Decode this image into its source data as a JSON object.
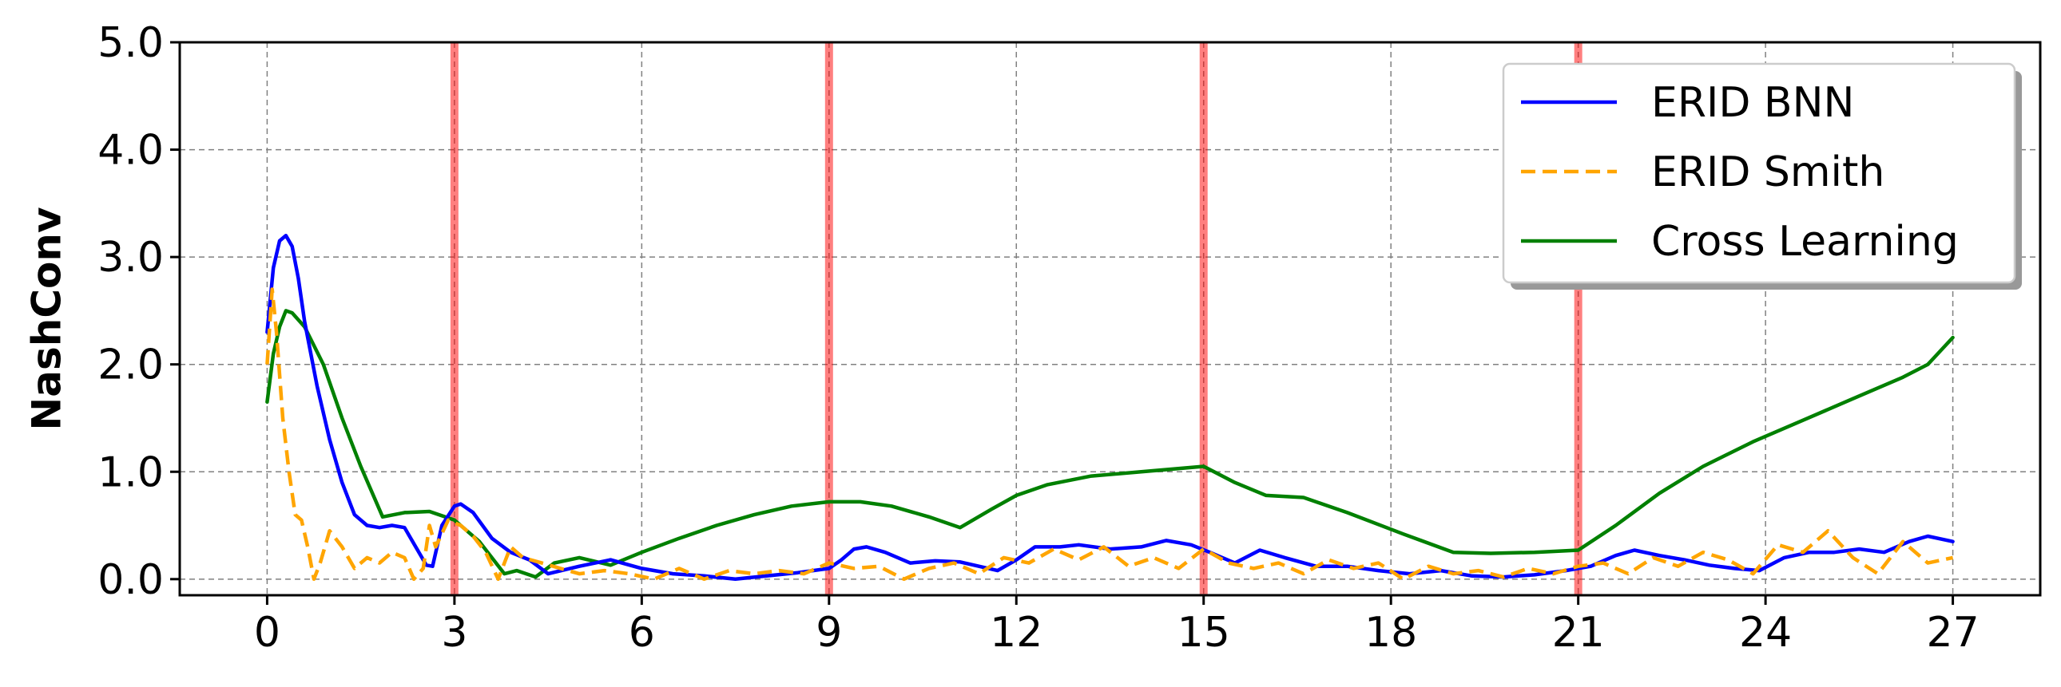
{
  "chart_data": {
    "type": "line",
    "title": "",
    "xlabel": "",
    "ylabel": "NashConv",
    "xlim": [
      -1.4,
      28.4
    ],
    "ylim": [
      -0.15,
      5.0
    ],
    "x_ticks": [
      0,
      3,
      6,
      9,
      12,
      15,
      18,
      21,
      24,
      27
    ],
    "x_tick_labels": [
      "0",
      "3",
      "6",
      "9",
      "12",
      "15",
      "18",
      "21",
      "24",
      "27"
    ],
    "y_ticks": [
      0,
      1,
      2,
      3,
      4,
      5
    ],
    "y_tick_labels": [
      "0.0",
      "1.0",
      "2.0",
      "3.0",
      "4.0",
      "5.0"
    ],
    "grid": true,
    "legend_position": "top-right",
    "vertical_markers": [
      3,
      9,
      15,
      21
    ],
    "marker_color": "#ff0000",
    "series": [
      {
        "name": "ERID BNN",
        "color": "#0000ff",
        "style": "solid",
        "points": [
          [
            0,
            2.3
          ],
          [
            0.1,
            2.9
          ],
          [
            0.2,
            3.15
          ],
          [
            0.3,
            3.2
          ],
          [
            0.4,
            3.1
          ],
          [
            0.5,
            2.8
          ],
          [
            0.6,
            2.4
          ],
          [
            0.8,
            1.8
          ],
          [
            1.0,
            1.3
          ],
          [
            1.2,
            0.9
          ],
          [
            1.4,
            0.6
          ],
          [
            1.6,
            0.5
          ],
          [
            1.8,
            0.48
          ],
          [
            2.0,
            0.5
          ],
          [
            2.2,
            0.48
          ],
          [
            2.4,
            0.28
          ],
          [
            2.55,
            0.13
          ],
          [
            2.65,
            0.12
          ],
          [
            2.8,
            0.5
          ],
          [
            3.0,
            0.68
          ],
          [
            3.1,
            0.7
          ],
          [
            3.3,
            0.62
          ],
          [
            3.6,
            0.38
          ],
          [
            3.9,
            0.25
          ],
          [
            4.2,
            0.18
          ],
          [
            4.5,
            0.05
          ],
          [
            5.0,
            0.12
          ],
          [
            5.5,
            0.18
          ],
          [
            6.0,
            0.1
          ],
          [
            6.5,
            0.05
          ],
          [
            7.0,
            0.03
          ],
          [
            7.5,
            0.0
          ],
          [
            8.0,
            0.03
          ],
          [
            8.5,
            0.06
          ],
          [
            9.0,
            0.1
          ],
          [
            9.2,
            0.18
          ],
          [
            9.4,
            0.28
          ],
          [
            9.6,
            0.3
          ],
          [
            9.9,
            0.25
          ],
          [
            10.3,
            0.15
          ],
          [
            10.7,
            0.17
          ],
          [
            11.1,
            0.16
          ],
          [
            11.4,
            0.12
          ],
          [
            11.7,
            0.08
          ],
          [
            12.0,
            0.18
          ],
          [
            12.3,
            0.3
          ],
          [
            12.7,
            0.3
          ],
          [
            13.0,
            0.32
          ],
          [
            13.5,
            0.28
          ],
          [
            14.0,
            0.3
          ],
          [
            14.4,
            0.36
          ],
          [
            14.8,
            0.32
          ],
          [
            15.1,
            0.25
          ],
          [
            15.5,
            0.15
          ],
          [
            15.9,
            0.27
          ],
          [
            16.3,
            0.2
          ],
          [
            16.8,
            0.12
          ],
          [
            17.3,
            0.12
          ],
          [
            17.8,
            0.08
          ],
          [
            18.3,
            0.05
          ],
          [
            18.8,
            0.08
          ],
          [
            19.3,
            0.03
          ],
          [
            19.8,
            0.02
          ],
          [
            20.3,
            0.04
          ],
          [
            20.8,
            0.08
          ],
          [
            21.2,
            0.12
          ],
          [
            21.6,
            0.22
          ],
          [
            21.9,
            0.27
          ],
          [
            22.3,
            0.22
          ],
          [
            22.7,
            0.18
          ],
          [
            23.1,
            0.13
          ],
          [
            23.5,
            0.1
          ],
          [
            23.9,
            0.08
          ],
          [
            24.3,
            0.2
          ],
          [
            24.7,
            0.25
          ],
          [
            25.1,
            0.25
          ],
          [
            25.5,
            0.28
          ],
          [
            25.9,
            0.25
          ],
          [
            26.3,
            0.35
          ],
          [
            26.6,
            0.4
          ],
          [
            27.0,
            0.35
          ]
        ]
      },
      {
        "name": "ERID Smith",
        "color": "#ffa500",
        "style": "dashed",
        "points": [
          [
            0,
            2.0
          ],
          [
            0.08,
            2.7
          ],
          [
            0.15,
            2.3
          ],
          [
            0.25,
            1.5
          ],
          [
            0.35,
            1.0
          ],
          [
            0.45,
            0.6
          ],
          [
            0.55,
            0.55
          ],
          [
            0.65,
            0.3
          ],
          [
            0.75,
            0.0
          ],
          [
            0.85,
            0.15
          ],
          [
            1.0,
            0.45
          ],
          [
            1.2,
            0.3
          ],
          [
            1.4,
            0.1
          ],
          [
            1.6,
            0.2
          ],
          [
            1.8,
            0.15
          ],
          [
            2.0,
            0.25
          ],
          [
            2.2,
            0.2
          ],
          [
            2.35,
            0.0
          ],
          [
            2.5,
            0.1
          ],
          [
            2.6,
            0.5
          ],
          [
            2.7,
            0.3
          ],
          [
            2.9,
            0.55
          ],
          [
            3.1,
            0.5
          ],
          [
            3.3,
            0.4
          ],
          [
            3.5,
            0.25
          ],
          [
            3.7,
            0.0
          ],
          [
            3.9,
            0.3
          ],
          [
            4.1,
            0.2
          ],
          [
            4.4,
            0.15
          ],
          [
            4.7,
            0.1
          ],
          [
            5.0,
            0.05
          ],
          [
            5.4,
            0.08
          ],
          [
            5.8,
            0.05
          ],
          [
            6.2,
            0.0
          ],
          [
            6.6,
            0.1
          ],
          [
            7.0,
            0.0
          ],
          [
            7.4,
            0.08
          ],
          [
            7.8,
            0.05
          ],
          [
            8.2,
            0.08
          ],
          [
            8.6,
            0.05
          ],
          [
            9.0,
            0.15
          ],
          [
            9.4,
            0.1
          ],
          [
            9.8,
            0.12
          ],
          [
            10.2,
            0.0
          ],
          [
            10.6,
            0.1
          ],
          [
            11.0,
            0.15
          ],
          [
            11.4,
            0.05
          ],
          [
            11.8,
            0.2
          ],
          [
            12.2,
            0.15
          ],
          [
            12.6,
            0.28
          ],
          [
            13.0,
            0.18
          ],
          [
            13.4,
            0.3
          ],
          [
            13.8,
            0.12
          ],
          [
            14.2,
            0.2
          ],
          [
            14.6,
            0.1
          ],
          [
            15.0,
            0.28
          ],
          [
            15.4,
            0.15
          ],
          [
            15.8,
            0.1
          ],
          [
            16.2,
            0.15
          ],
          [
            16.6,
            0.05
          ],
          [
            17.0,
            0.18
          ],
          [
            17.4,
            0.1
          ],
          [
            17.8,
            0.15
          ],
          [
            18.2,
            0.0
          ],
          [
            18.6,
            0.12
          ],
          [
            19.0,
            0.05
          ],
          [
            19.4,
            0.08
          ],
          [
            19.8,
            0.02
          ],
          [
            20.2,
            0.1
          ],
          [
            20.6,
            0.05
          ],
          [
            21.0,
            0.12
          ],
          [
            21.4,
            0.15
          ],
          [
            21.8,
            0.05
          ],
          [
            22.2,
            0.2
          ],
          [
            22.6,
            0.12
          ],
          [
            23.0,
            0.25
          ],
          [
            23.4,
            0.18
          ],
          [
            23.8,
            0.05
          ],
          [
            24.2,
            0.32
          ],
          [
            24.6,
            0.25
          ],
          [
            25.0,
            0.45
          ],
          [
            25.4,
            0.2
          ],
          [
            25.8,
            0.05
          ],
          [
            26.2,
            0.35
          ],
          [
            26.6,
            0.15
          ],
          [
            27.0,
            0.2
          ]
        ]
      },
      {
        "name": "Cross Learning",
        "color": "#008000",
        "style": "solid",
        "points": [
          [
            0,
            1.65
          ],
          [
            0.1,
            2.1
          ],
          [
            0.2,
            2.35
          ],
          [
            0.3,
            2.5
          ],
          [
            0.4,
            2.48
          ],
          [
            0.6,
            2.35
          ],
          [
            0.9,
            2.0
          ],
          [
            1.2,
            1.5
          ],
          [
            1.5,
            1.05
          ],
          [
            1.85,
            0.58
          ],
          [
            2.2,
            0.62
          ],
          [
            2.6,
            0.63
          ],
          [
            3.0,
            0.55
          ],
          [
            3.4,
            0.35
          ],
          [
            3.8,
            0.05
          ],
          [
            4.0,
            0.08
          ],
          [
            4.3,
            0.02
          ],
          [
            4.6,
            0.15
          ],
          [
            5.0,
            0.2
          ],
          [
            5.5,
            0.13
          ],
          [
            6.0,
            0.25
          ],
          [
            6.6,
            0.38
          ],
          [
            7.2,
            0.5
          ],
          [
            7.8,
            0.6
          ],
          [
            8.4,
            0.68
          ],
          [
            9.0,
            0.72
          ],
          [
            9.5,
            0.72
          ],
          [
            10.0,
            0.68
          ],
          [
            10.6,
            0.58
          ],
          [
            11.1,
            0.48
          ],
          [
            11.6,
            0.65
          ],
          [
            12.0,
            0.78
          ],
          [
            12.5,
            0.88
          ],
          [
            13.2,
            0.96
          ],
          [
            14.0,
            1.0
          ],
          [
            15.0,
            1.05
          ],
          [
            15.5,
            0.9
          ],
          [
            16.0,
            0.78
          ],
          [
            16.6,
            0.76
          ],
          [
            17.3,
            0.62
          ],
          [
            18.2,
            0.42
          ],
          [
            19.0,
            0.25
          ],
          [
            19.6,
            0.24
          ],
          [
            20.3,
            0.25
          ],
          [
            21.0,
            0.27
          ],
          [
            21.6,
            0.5
          ],
          [
            22.3,
            0.8
          ],
          [
            23.0,
            1.05
          ],
          [
            23.8,
            1.28
          ],
          [
            24.6,
            1.48
          ],
          [
            25.4,
            1.68
          ],
          [
            26.2,
            1.88
          ],
          [
            26.6,
            2.0
          ],
          [
            27.0,
            2.25
          ]
        ]
      }
    ]
  }
}
